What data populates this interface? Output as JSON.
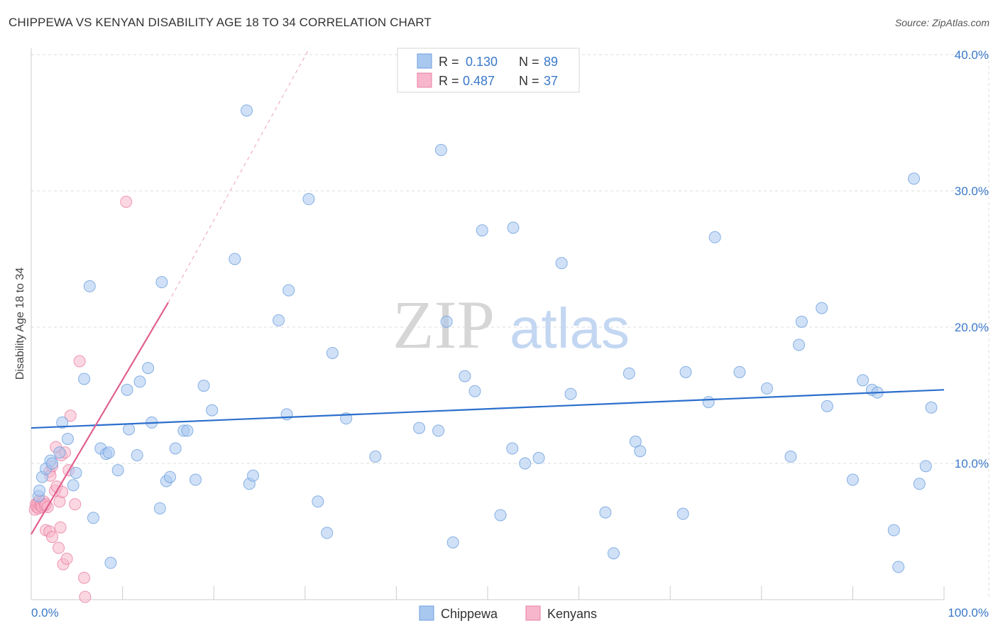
{
  "title": "CHIPPEWA VS KENYAN DISABILITY AGE 18 TO 34 CORRELATION CHART",
  "source": "Source: ZipAtlas.com",
  "watermark": {
    "zip": "ZIP",
    "atlas": "atlas"
  },
  "colors": {
    "chippewa_fill": "#a9c8f0",
    "chippewa_stroke": "#6d9fdf",
    "chippewa_line": "#2b6fcc",
    "kenyans_fill": "#f7b6cb",
    "kenyans_stroke": "#e87fa3",
    "kenyans_line": "#e0608f",
    "tick_text": "#3a78c9",
    "grid": "#dddddd"
  },
  "legend": {
    "rows": [
      {
        "r_label": "R =",
        "r_value": "0.130",
        "n_label": "N =",
        "n_value": "89"
      },
      {
        "r_label": "R =",
        "r_value": "0.487",
        "n_label": "N =",
        "n_value": "37"
      }
    ]
  },
  "bottom_legend": [
    "Chippewa",
    "Kenyans"
  ],
  "chart_data": {
    "type": "scatter",
    "title": "CHIPPEWA VS KENYAN DISABILITY AGE 18 TO 34 CORRELATION CHART",
    "xlabel": "",
    "ylabel": "Disability Age 18 to 34",
    "xlim": [
      0,
      100
    ],
    "ylim": [
      0,
      40
    ],
    "x_tick_labels": [
      "0.0%",
      "100.0%"
    ],
    "y_ticks": [
      10,
      20,
      30,
      40
    ],
    "y_tick_labels": [
      "10.0%",
      "20.0%",
      "30.0%",
      "40.0%"
    ],
    "grid": true,
    "series": [
      {
        "name": "Chippewa",
        "r": 0.13,
        "n": 89,
        "trend": {
          "x": [
            0,
            100
          ],
          "y": [
            12.6,
            15.4
          ]
        },
        "points": [
          [
            0.8,
            7.6
          ],
          [
            0.9,
            8.0
          ],
          [
            1.2,
            9.0
          ],
          [
            1.6,
            9.6
          ],
          [
            2.1,
            10.2
          ],
          [
            2.3,
            10.0
          ],
          [
            3.1,
            10.8
          ],
          [
            3.4,
            13.0
          ],
          [
            4.0,
            11.8
          ],
          [
            4.6,
            8.4
          ],
          [
            4.9,
            9.3
          ],
          [
            5.8,
            16.2
          ],
          [
            6.4,
            23.0
          ],
          [
            6.8,
            6.0
          ],
          [
            7.6,
            11.1
          ],
          [
            8.2,
            10.7
          ],
          [
            8.5,
            10.8
          ],
          [
            8.7,
            2.7
          ],
          [
            9.5,
            9.5
          ],
          [
            10.5,
            15.4
          ],
          [
            10.7,
            12.5
          ],
          [
            11.6,
            10.6
          ],
          [
            11.9,
            16.0
          ],
          [
            12.8,
            17.0
          ],
          [
            13.2,
            13.0
          ],
          [
            14.1,
            6.7
          ],
          [
            14.3,
            23.3
          ],
          [
            14.8,
            8.7
          ],
          [
            15.2,
            9.0
          ],
          [
            15.8,
            11.1
          ],
          [
            16.7,
            12.4
          ],
          [
            17.1,
            12.4
          ],
          [
            18.0,
            8.8
          ],
          [
            18.9,
            15.7
          ],
          [
            19.8,
            13.9
          ],
          [
            22.3,
            25.0
          ],
          [
            23.6,
            35.9
          ],
          [
            23.9,
            8.5
          ],
          [
            24.3,
            9.1
          ],
          [
            27.1,
            20.5
          ],
          [
            28.0,
            13.6
          ],
          [
            28.2,
            22.7
          ],
          [
            30.4,
            29.4
          ],
          [
            31.4,
            7.2
          ],
          [
            32.4,
            4.9
          ],
          [
            33.0,
            18.1
          ],
          [
            34.5,
            13.3
          ],
          [
            37.7,
            10.5
          ],
          [
            42.5,
            12.6
          ],
          [
            44.6,
            12.4
          ],
          [
            44.9,
            33.0
          ],
          [
            45.5,
            20.4
          ],
          [
            46.2,
            4.2
          ],
          [
            47.5,
            16.4
          ],
          [
            48.6,
            15.3
          ],
          [
            49.4,
            27.1
          ],
          [
            51.4,
            6.2
          ],
          [
            52.7,
            11.1
          ],
          [
            52.8,
            27.3
          ],
          [
            54.1,
            10.0
          ],
          [
            55.6,
            10.4
          ],
          [
            58.1,
            24.7
          ],
          [
            59.1,
            15.1
          ],
          [
            62.9,
            6.4
          ],
          [
            63.8,
            3.4
          ],
          [
            65.5,
            16.6
          ],
          [
            66.2,
            11.6
          ],
          [
            66.7,
            10.9
          ],
          [
            71.4,
            6.3
          ],
          [
            71.7,
            16.7
          ],
          [
            74.2,
            14.5
          ],
          [
            74.9,
            26.6
          ],
          [
            77.6,
            16.7
          ],
          [
            80.6,
            15.5
          ],
          [
            83.2,
            10.5
          ],
          [
            84.1,
            18.7
          ],
          [
            84.4,
            20.4
          ],
          [
            86.6,
            21.4
          ],
          [
            87.2,
            14.2
          ],
          [
            90.0,
            8.8
          ],
          [
            91.1,
            16.1
          ],
          [
            92.1,
            15.4
          ],
          [
            92.7,
            15.2
          ],
          [
            94.5,
            5.1
          ],
          [
            95.0,
            2.4
          ],
          [
            96.7,
            30.9
          ],
          [
            97.3,
            8.5
          ],
          [
            98.0,
            9.8
          ],
          [
            98.6,
            14.1
          ]
        ]
      },
      {
        "name": "Kenyans",
        "r": 0.487,
        "n": 37,
        "trend": {
          "x": [
            0,
            15
          ],
          "y": [
            4.8,
            21.8
          ]
        },
        "trend_extension": {
          "x": [
            15,
            30.5
          ],
          "y": [
            21.8,
            40.5
          ]
        },
        "points": [
          [
            0.4,
            6.6
          ],
          [
            0.5,
            7.0
          ],
          [
            0.6,
            6.8
          ],
          [
            0.7,
            7.1
          ],
          [
            0.8,
            6.7
          ],
          [
            0.9,
            7.3
          ],
          [
            1.0,
            6.9
          ],
          [
            1.1,
            7.0
          ],
          [
            1.2,
            6.8
          ],
          [
            1.4,
            7.2
          ],
          [
            1.5,
            6.9
          ],
          [
            1.6,
            7.0
          ],
          [
            1.6,
            5.1
          ],
          [
            1.8,
            6.8
          ],
          [
            2.0,
            5.0
          ],
          [
            2.0,
            9.4
          ],
          [
            2.1,
            9.1
          ],
          [
            2.3,
            9.8
          ],
          [
            2.3,
            4.6
          ],
          [
            2.6,
            8.0
          ],
          [
            2.7,
            11.2
          ],
          [
            2.8,
            8.3
          ],
          [
            3.0,
            3.8
          ],
          [
            3.1,
            7.2
          ],
          [
            3.2,
            5.3
          ],
          [
            3.3,
            10.6
          ],
          [
            3.4,
            7.9
          ],
          [
            3.5,
            2.6
          ],
          [
            3.7,
            10.8
          ],
          [
            3.9,
            3.0
          ],
          [
            4.1,
            9.5
          ],
          [
            4.3,
            13.5
          ],
          [
            4.8,
            7.0
          ],
          [
            5.3,
            17.5
          ],
          [
            5.8,
            1.6
          ],
          [
            5.9,
            0.2
          ],
          [
            10.4,
            29.2
          ]
        ]
      }
    ]
  }
}
